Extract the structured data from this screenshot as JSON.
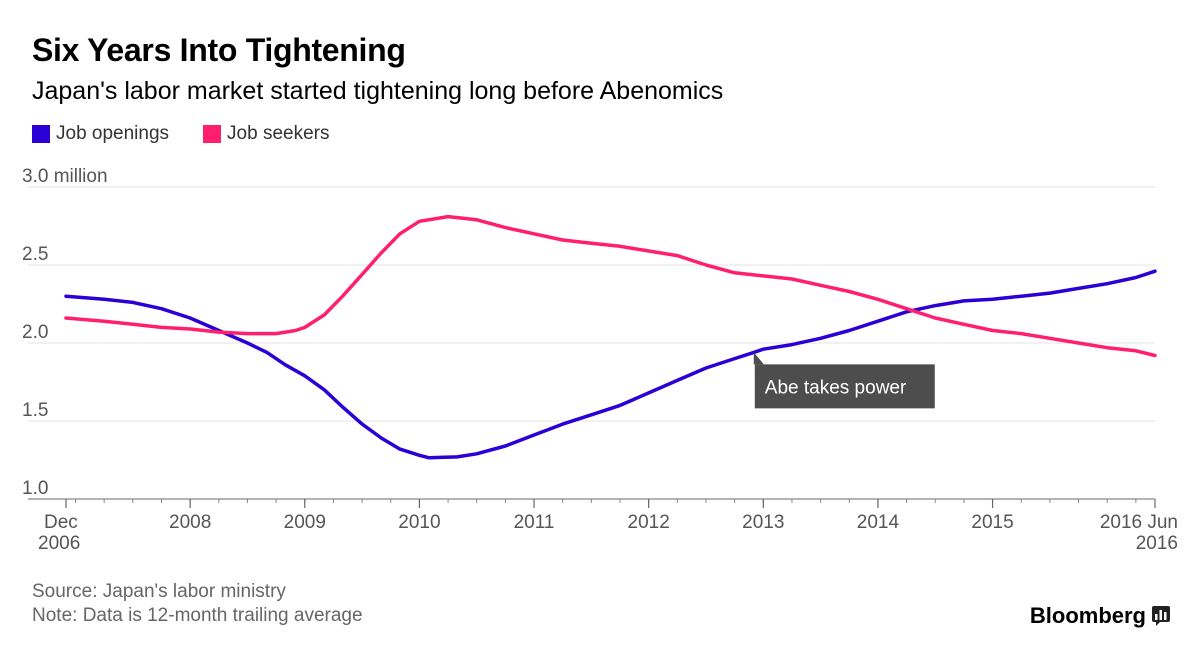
{
  "header": {
    "title": "Six Years Into Tightening",
    "subtitle": "Japan's labor market started tightening long before Abenomics"
  },
  "legend": [
    {
      "label": "Job openings",
      "color": "#2a00d6"
    },
    {
      "label": "Job seekers",
      "color": "#ff1f6e"
    }
  ],
  "footer": {
    "source": "Source: Japan's labor ministry",
    "note": "Note: Data is 12-month trailing average"
  },
  "brand": {
    "name": "Bloomberg",
    "icon": "bloomberg-terminal-icon"
  },
  "chart_data": {
    "type": "line",
    "title": "Six Years Into Tightening",
    "subtitle": "Japan's labor market started tightening long before Abenomics",
    "xlabel": "",
    "ylabel": "",
    "y_unit": "million",
    "ylim": [
      1.0,
      3.0
    ],
    "xlim": [
      2006.917,
      2016.417
    ],
    "y_ticks": [
      1.0,
      1.5,
      2.0,
      2.5,
      3.0
    ],
    "y_tick_labels": [
      "1.0",
      "1.5",
      "2.0",
      "2.5",
      "3.0 million"
    ],
    "x_ticks": [
      {
        "x": 2006.917,
        "line1": "Dec",
        "line2": "2006",
        "align": "start"
      },
      {
        "x": 2008,
        "line1": "2008",
        "line2": "",
        "align": "middle"
      },
      {
        "x": 2009,
        "line1": "2009",
        "line2": "",
        "align": "middle"
      },
      {
        "x": 2010,
        "line1": "2010",
        "line2": "",
        "align": "middle"
      },
      {
        "x": 2011,
        "line1": "2011",
        "line2": "",
        "align": "middle"
      },
      {
        "x": 2012,
        "line1": "2012",
        "line2": "",
        "align": "middle"
      },
      {
        "x": 2013,
        "line1": "2013",
        "line2": "",
        "align": "middle"
      },
      {
        "x": 2014,
        "line1": "2014",
        "line2": "",
        "align": "middle"
      },
      {
        "x": 2015,
        "line1": "2015",
        "line2": "",
        "align": "middle"
      },
      {
        "x": 2016.417,
        "line1": "2016 Jun",
        "line2": "2016",
        "align": "end"
      }
    ],
    "grid": true,
    "legend_position": "top-left",
    "series": [
      {
        "name": "Job openings",
        "color": "#2a00d6",
        "points": [
          [
            2006.917,
            2.3
          ],
          [
            2007.25,
            2.28
          ],
          [
            2007.5,
            2.26
          ],
          [
            2007.75,
            2.22
          ],
          [
            2008.0,
            2.16
          ],
          [
            2008.25,
            2.08
          ],
          [
            2008.5,
            2.0
          ],
          [
            2008.67,
            1.94
          ],
          [
            2008.83,
            1.86
          ],
          [
            2009.0,
            1.79
          ],
          [
            2009.17,
            1.7
          ],
          [
            2009.33,
            1.59
          ],
          [
            2009.5,
            1.48
          ],
          [
            2009.67,
            1.39
          ],
          [
            2009.83,
            1.32
          ],
          [
            2010.0,
            1.28
          ],
          [
            2010.08,
            1.265
          ],
          [
            2010.33,
            1.27
          ],
          [
            2010.5,
            1.29
          ],
          [
            2010.75,
            1.34
          ],
          [
            2011.0,
            1.41
          ],
          [
            2011.25,
            1.48
          ],
          [
            2011.5,
            1.54
          ],
          [
            2011.75,
            1.6
          ],
          [
            2012.0,
            1.68
          ],
          [
            2012.25,
            1.76
          ],
          [
            2012.5,
            1.84
          ],
          [
            2012.75,
            1.9
          ],
          [
            2012.917,
            1.94
          ],
          [
            2013.0,
            1.96
          ],
          [
            2013.25,
            1.99
          ],
          [
            2013.5,
            2.03
          ],
          [
            2013.75,
            2.08
          ],
          [
            2014.0,
            2.14
          ],
          [
            2014.25,
            2.2
          ],
          [
            2014.5,
            2.24
          ],
          [
            2014.75,
            2.27
          ],
          [
            2015.0,
            2.28
          ],
          [
            2015.25,
            2.3
          ],
          [
            2015.5,
            2.32
          ],
          [
            2015.75,
            2.35
          ],
          [
            2016.0,
            2.38
          ],
          [
            2016.25,
            2.42
          ],
          [
            2016.417,
            2.46
          ]
        ]
      },
      {
        "name": "Job seekers",
        "color": "#ff1f6e",
        "points": [
          [
            2006.917,
            2.16
          ],
          [
            2007.25,
            2.14
          ],
          [
            2007.5,
            2.12
          ],
          [
            2007.75,
            2.1
          ],
          [
            2008.0,
            2.09
          ],
          [
            2008.25,
            2.07
          ],
          [
            2008.5,
            2.06
          ],
          [
            2008.75,
            2.06
          ],
          [
            2008.92,
            2.08
          ],
          [
            2009.0,
            2.1
          ],
          [
            2009.17,
            2.18
          ],
          [
            2009.33,
            2.3
          ],
          [
            2009.5,
            2.44
          ],
          [
            2009.67,
            2.58
          ],
          [
            2009.83,
            2.7
          ],
          [
            2010.0,
            2.78
          ],
          [
            2010.25,
            2.81
          ],
          [
            2010.5,
            2.79
          ],
          [
            2010.75,
            2.74
          ],
          [
            2011.0,
            2.7
          ],
          [
            2011.25,
            2.66
          ],
          [
            2011.5,
            2.64
          ],
          [
            2011.75,
            2.62
          ],
          [
            2012.0,
            2.59
          ],
          [
            2012.25,
            2.56
          ],
          [
            2012.5,
            2.5
          ],
          [
            2012.75,
            2.45
          ],
          [
            2013.0,
            2.43
          ],
          [
            2013.25,
            2.41
          ],
          [
            2013.5,
            2.37
          ],
          [
            2013.75,
            2.33
          ],
          [
            2014.0,
            2.28
          ],
          [
            2014.25,
            2.22
          ],
          [
            2014.5,
            2.16
          ],
          [
            2014.75,
            2.12
          ],
          [
            2015.0,
            2.08
          ],
          [
            2015.25,
            2.06
          ],
          [
            2015.5,
            2.03
          ],
          [
            2015.75,
            2.0
          ],
          [
            2016.0,
            1.97
          ],
          [
            2016.25,
            1.95
          ],
          [
            2016.417,
            1.92
          ]
        ]
      }
    ],
    "annotations": [
      {
        "text": "Abe takes power",
        "x": 2012.917,
        "y": 1.94
      }
    ]
  }
}
